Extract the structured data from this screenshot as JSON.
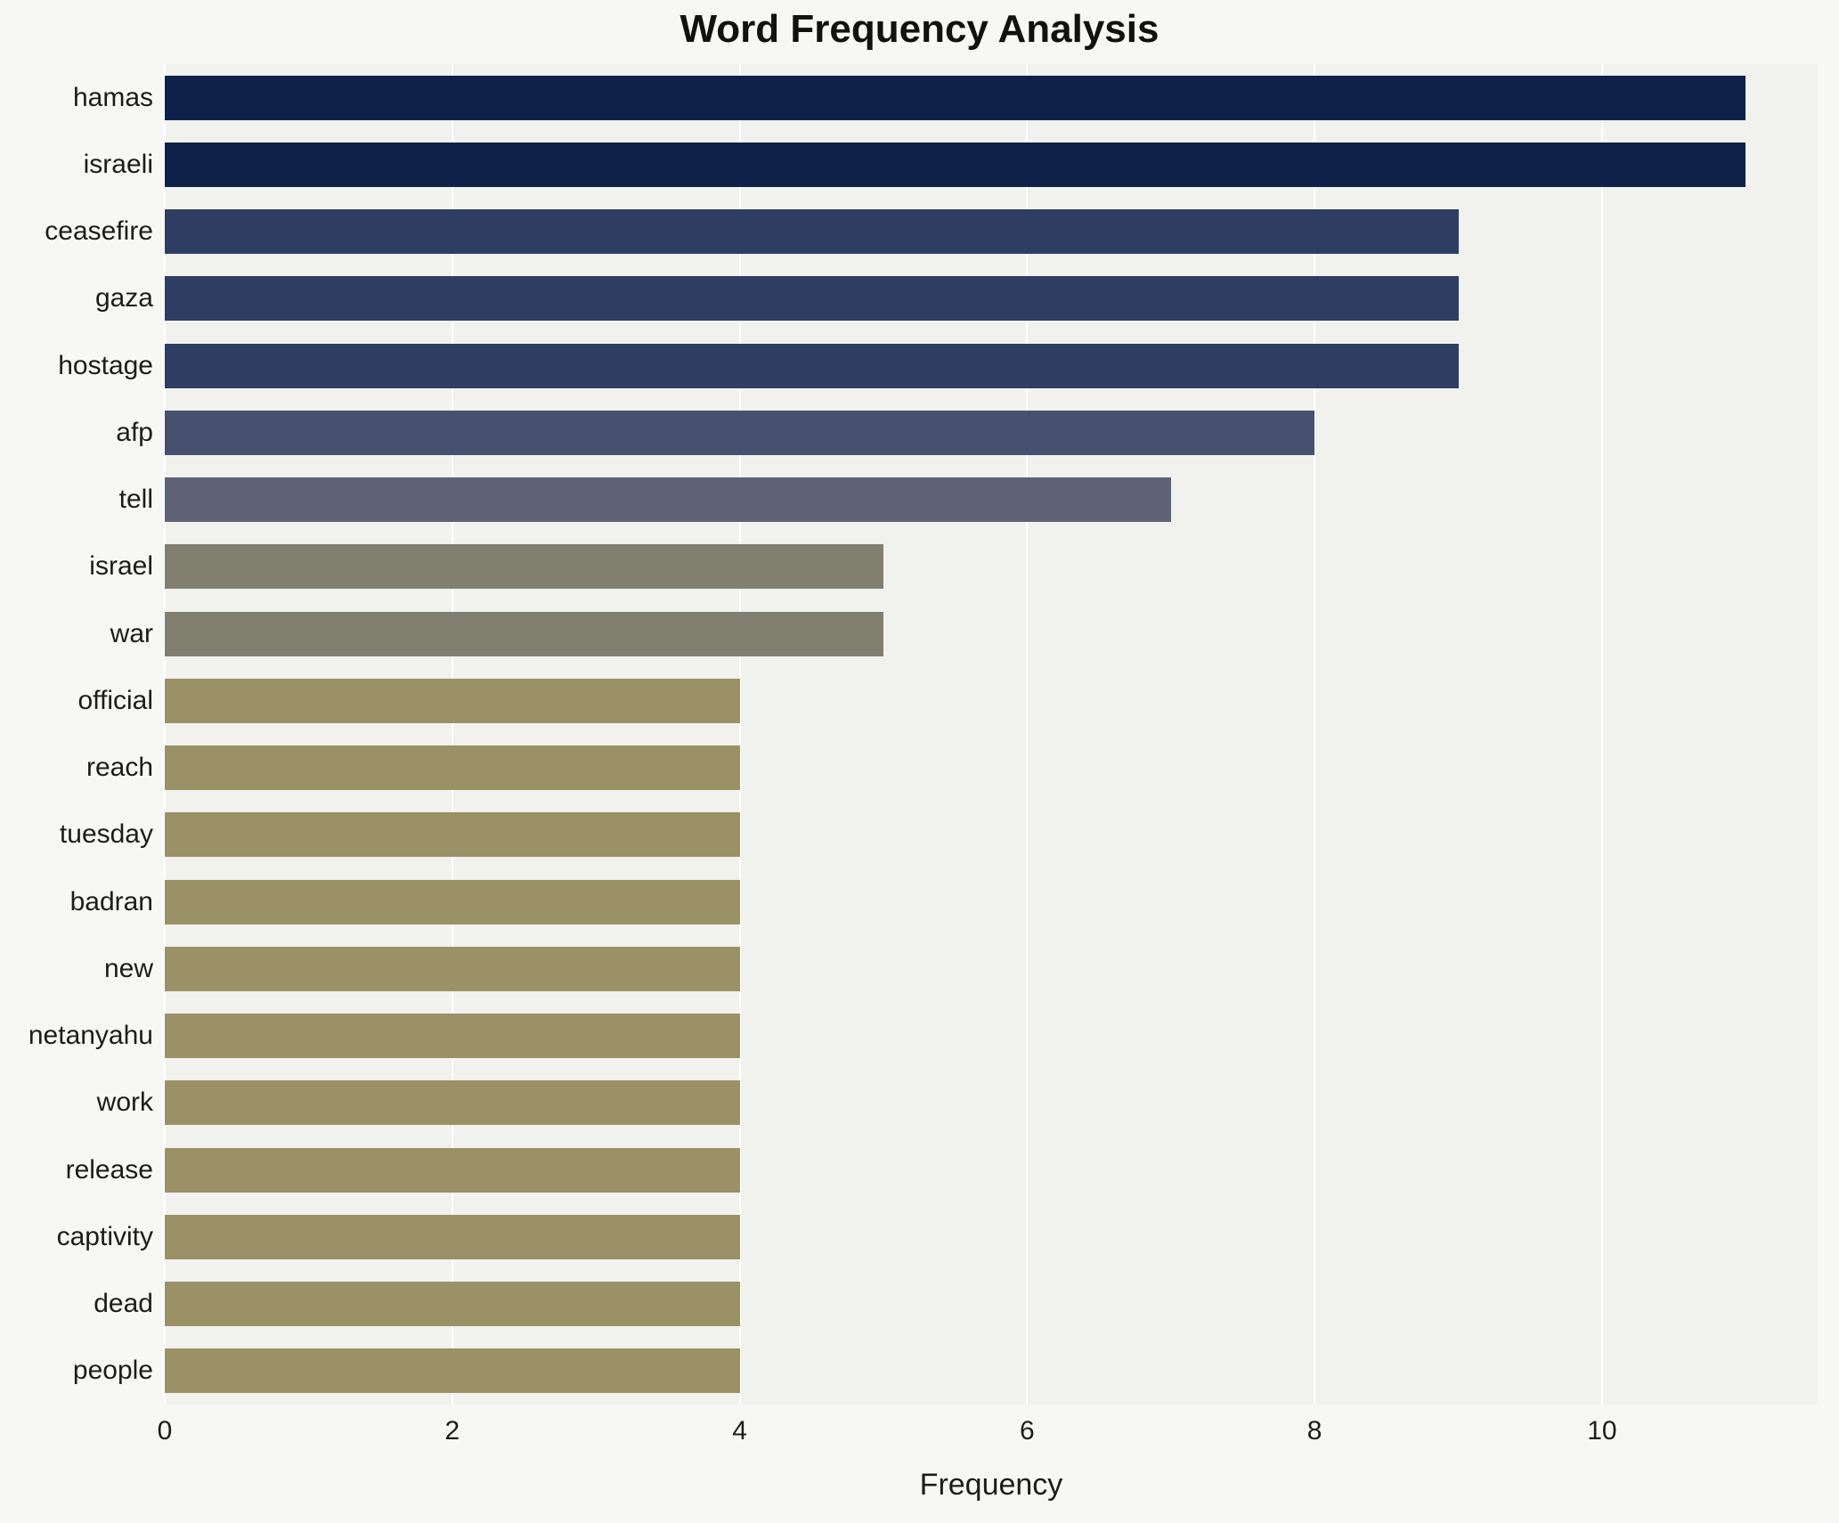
{
  "chart_data": {
    "type": "bar",
    "orientation": "horizontal",
    "title": "Word Frequency Analysis",
    "xlabel": "Frequency",
    "ylabel": "",
    "xlim": [
      0,
      11.5
    ],
    "xticks": [
      0,
      2,
      4,
      6,
      8,
      10
    ],
    "grid": true,
    "legend": false,
    "categories": [
      "hamas",
      "israeli",
      "ceasefire",
      "gaza",
      "hostage",
      "afp",
      "tell",
      "israel",
      "war",
      "official",
      "reach",
      "tuesday",
      "badran",
      "new",
      "netanyahu",
      "work",
      "release",
      "captivity",
      "dead",
      "people"
    ],
    "values": [
      11,
      11,
      9,
      9,
      9,
      8,
      7,
      5,
      5,
      4,
      4,
      4,
      4,
      4,
      4,
      4,
      4,
      4,
      4,
      4
    ],
    "bar_colors": [
      "#0d2149",
      "#0d2149",
      "#2e3e63",
      "#2e3e63",
      "#2e3e63",
      "#47506e",
      "#5e6275",
      "#817f6f",
      "#817f6f",
      "#9b9166",
      "#9b9166",
      "#9b9166",
      "#9b9166",
      "#9b9166",
      "#9b9166",
      "#9b9166",
      "#9b9166",
      "#9b9166",
      "#9b9166",
      "#9b9166"
    ],
    "colors": {
      "plot_background": "#f1f1ee",
      "page_background": "#f7f7f5",
      "gridline": "#ffffff",
      "text": "#1c1c1c"
    }
  }
}
